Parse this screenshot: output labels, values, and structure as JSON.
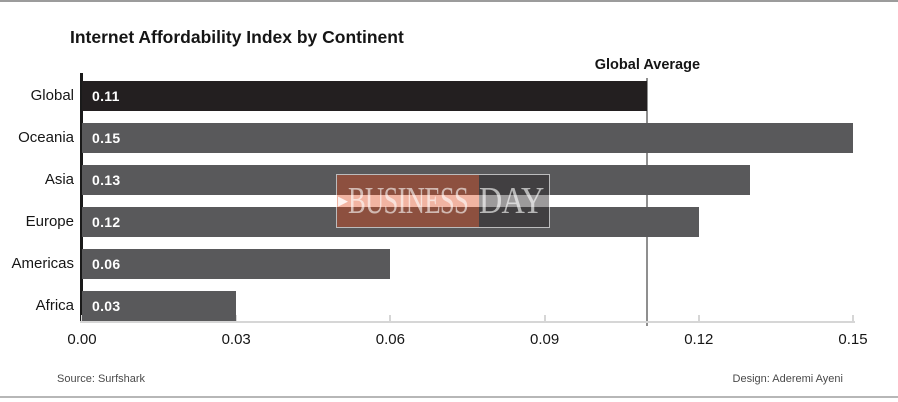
{
  "page": {
    "source_credit": "Source: Surfshark",
    "design_credit": "Design: Aderemi Ayeni"
  },
  "chart_data": {
    "type": "bar",
    "orientation": "horizontal",
    "title": "Internet Affordability Index by Continent",
    "categories": [
      "Global",
      "Oceania",
      "Asia",
      "Europe",
      "Americas",
      "Africa"
    ],
    "values": [
      0.11,
      0.15,
      0.13,
      0.12,
      0.06,
      0.03
    ],
    "value_labels": [
      "0.11",
      "0.15",
      "0.13",
      "0.12",
      "0.06",
      "0.03"
    ],
    "bar_colors": [
      "#231f20",
      "#59595b",
      "#59595b",
      "#59595b",
      "#59595b",
      "#59595b"
    ],
    "xlim": [
      0,
      0.15
    ],
    "x_ticks": [
      0,
      0.03,
      0.06,
      0.09,
      0.12,
      0.15
    ],
    "x_tick_labels": [
      "0.00",
      "0.03",
      "0.06",
      "0.09",
      "0.12",
      "0.15"
    ],
    "average_line": {
      "label": "Global Average",
      "value": 0.11,
      "color": "#8f8f8f"
    },
    "grid": false,
    "legend": false
  },
  "watermark": {
    "arrow": "▶",
    "left_text": "BUSINESS",
    "right_text": "DAY",
    "left_bg": "rgba(221,68,22,0.40)",
    "right_bg": "rgba(35,32,34,0.45)"
  }
}
